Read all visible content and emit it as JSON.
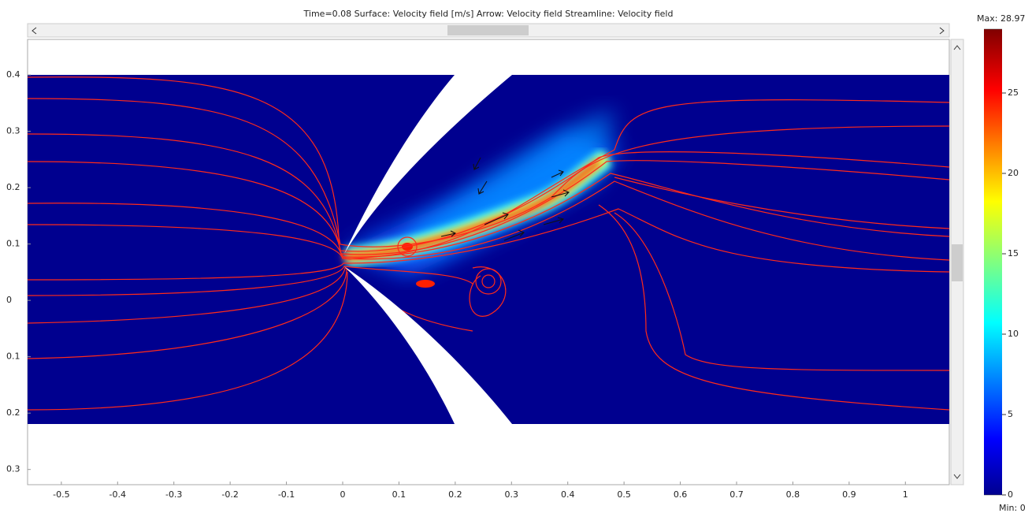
{
  "chart_data": {
    "type": "surface",
    "title": "Time=0.08   Surface: Velocity field [m/s]   Arrow: Velocity field   Streamline: Velocity field",
    "xlim": [
      -0.56,
      1.078
    ],
    "ylim": [
      -0.327,
      0.463
    ],
    "xticks": [
      -0.5,
      -0.4,
      -0.3,
      -0.2,
      -0.1,
      0,
      0.1,
      0.2,
      0.3,
      0.4,
      0.5,
      0.6,
      0.7,
      0.8,
      0.9,
      1
    ],
    "yticks": [
      0.4,
      0.3,
      0.2,
      0.1,
      0,
      {
        "value": -0.1,
        "label": "0.1"
      },
      {
        "value": -0.2,
        "label": "0.2"
      },
      {
        "value": -0.3,
        "label": "0.3"
      }
    ],
    "colorbar": {
      "clim": [
        0,
        28.97
      ],
      "ticks": [
        0,
        5,
        10,
        15,
        20,
        25
      ],
      "max": {
        "value": 28.97,
        "label": "Max: 28.97"
      },
      "min": {
        "value": 0,
        "label": "Min: 0"
      }
    }
  }
}
